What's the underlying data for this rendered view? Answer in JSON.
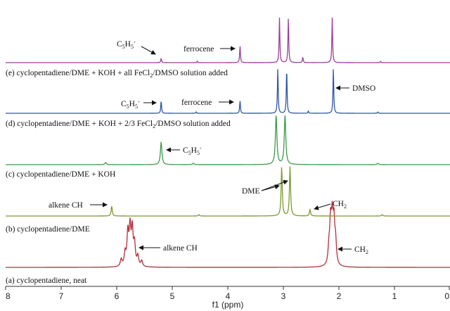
{
  "chart_data": {
    "type": "line",
    "xlabel": "f1 (ppm)",
    "xlim": [
      8,
      0
    ],
    "x_ticks": [
      "8",
      "7",
      "6",
      "5",
      "4",
      "3",
      "2",
      "1",
      "0"
    ],
    "x_reversed": true,
    "grid": false,
    "series": [
      {
        "label": "(a) cyclopentadiene, neat",
        "color": "#b2303a",
        "peaks": [
          {
            "ppm": 5.8,
            "height": 46
          },
          {
            "ppm": 5.76,
            "height": 52
          },
          {
            "ppm": 5.72,
            "height": 50
          },
          {
            "ppm": 5.68,
            "height": 30
          },
          {
            "ppm": 5.85,
            "height": 18
          },
          {
            "ppm": 5.62,
            "height": 14
          },
          {
            "ppm": 5.55,
            "height": 8
          },
          {
            "ppm": 5.92,
            "height": 10
          },
          {
            "ppm": 2.15,
            "height": 58
          },
          {
            "ppm": 2.12,
            "height": 60
          },
          {
            "ppm": 2.09,
            "height": 56
          },
          {
            "ppm": 2.06,
            "height": 30
          },
          {
            "ppm": 2.18,
            "height": 22
          }
        ],
        "annotations": [
          "alkene CH",
          "CH2"
        ]
      },
      {
        "label": "(b) cyclopentadiene/DME",
        "color": "#7d9a2d",
        "peaks": [
          {
            "ppm": 6.09,
            "height": 14
          },
          {
            "ppm": 3.03,
            "height": 70
          },
          {
            "ppm": 2.88,
            "height": 70
          },
          {
            "ppm": 2.52,
            "height": 9
          },
          {
            "ppm": 4.52,
            "height": 2
          },
          {
            "ppm": 1.22,
            "height": 2
          }
        ],
        "annotations": [
          "alkene CH",
          "DME",
          "CH2"
        ]
      },
      {
        "label": "(c) cyclopentadiene/DME + KOH",
        "color": "#3f9a4a",
        "peaks": [
          {
            "ppm": 5.2,
            "height": 32
          },
          {
            "ppm": 3.13,
            "height": 70
          },
          {
            "ppm": 2.97,
            "height": 70
          },
          {
            "ppm": 6.2,
            "height": 3
          },
          {
            "ppm": 4.62,
            "height": 2
          },
          {
            "ppm": 1.3,
            "height": 2
          }
        ],
        "annotations": [
          "C5H5-"
        ]
      },
      {
        "label": "(d) cyclopentadiene/DME + KOH + 2/3 FeCl2/DMSO solution added",
        "color": "#2f55a8",
        "peaks": [
          {
            "ppm": 5.2,
            "height": 18
          },
          {
            "ppm": 3.78,
            "height": 18
          },
          {
            "ppm": 3.1,
            "height": 64
          },
          {
            "ppm": 2.94,
            "height": 64
          },
          {
            "ppm": 2.1,
            "height": 64
          },
          {
            "ppm": 2.55,
            "height": 3
          },
          {
            "ppm": 1.3,
            "height": 2
          },
          {
            "ppm": 4.57,
            "height": 2
          }
        ],
        "annotations": [
          "C5H5-",
          "ferrocene",
          "DMSO"
        ]
      },
      {
        "label": "(e) cyclopentadiene/DME + KOH + all FeCl2/DMSO solution added",
        "color": "#9a3f9a",
        "peaks": [
          {
            "ppm": 5.2,
            "height": 6
          },
          {
            "ppm": 3.78,
            "height": 24
          },
          {
            "ppm": 3.07,
            "height": 64
          },
          {
            "ppm": 2.91,
            "height": 64
          },
          {
            "ppm": 2.12,
            "height": 64
          },
          {
            "ppm": 2.65,
            "height": 8
          },
          {
            "ppm": 4.55,
            "height": 2
          },
          {
            "ppm": 1.25,
            "height": 2
          }
        ],
        "annotations": [
          "C5H5-",
          "ferrocene"
        ]
      }
    ]
  },
  "texts": {
    "sa": "(a) cyclopentadiene, neat",
    "sb": "(b) cyclopentadiene/DME",
    "sc": "(c) cyclopentadiene/DME + KOH",
    "sd_pre": "(d) cyclopentadiene/DME + KOH + 2/3 FeCl",
    "sd_sub": "2",
    "sd_post": "/DMSO solution added",
    "se_pre": "(e) cyclopentadiene/DME + KOH + all FeCl",
    "se_sub": "2",
    "se_post": "/DMSO solution added",
    "a_alkene": "alkene CH",
    "a_ch2_pre": "CH",
    "a_ch2_sub": "2",
    "b_alkene": "alkene CH",
    "b_dme": "DME",
    "b_ch2_pre": "CH",
    "b_ch2_sub": "2",
    "c_c5_pre": "C",
    "c_c5_sub": "5",
    "c_c5_mid": "H",
    "c_c5_sub2": "5",
    "c_c5_sup": "-",
    "d_c5_pre": "C",
    "d_c5_sub": "5",
    "d_c5_mid": "H",
    "d_c5_sub2": "5",
    "d_c5_sup": "-",
    "d_ferrocene": "ferrocene",
    "d_dmso": "DMSO",
    "e_c5_pre": "C",
    "e_c5_sub": "5",
    "e_c5_mid": "H",
    "e_c5_sub2": "5",
    "e_c5_sup": "-",
    "e_ferrocene": "ferrocene"
  }
}
